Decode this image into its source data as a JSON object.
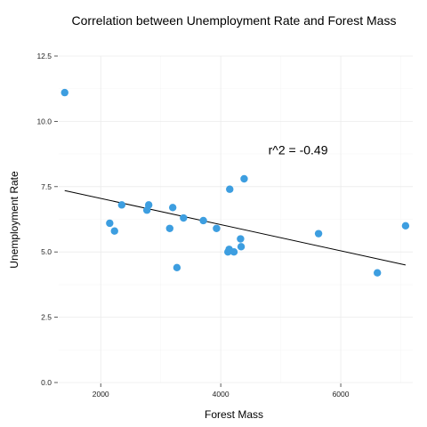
{
  "chart_data": {
    "type": "scatter",
    "title": "Correlation between Unemployment Rate and Forest Mass",
    "xlabel": "Forest Mass",
    "ylabel": "Unemployment Rate",
    "xlim": [
      1300,
      7200
    ],
    "ylim": [
      0,
      12.5
    ],
    "x_ticks": [
      2000,
      4000,
      6000
    ],
    "y_ticks": [
      0,
      2.5,
      5,
      7.5,
      10,
      12.5
    ],
    "x_tick_labels": [
      "2000",
      "4000",
      "6000"
    ],
    "y_tick_labels": [
      "0.0",
      "2.5",
      "5.0",
      "7.5",
      "10.0",
      "12.5"
    ],
    "grid": true,
    "point_color": "#3d9ee0",
    "points": [
      {
        "x": 1400,
        "y": 11.1
      },
      {
        "x": 2150,
        "y": 6.1
      },
      {
        "x": 2230,
        "y": 5.8
      },
      {
        "x": 2350,
        "y": 6.8
      },
      {
        "x": 2770,
        "y": 6.6
      },
      {
        "x": 2800,
        "y": 6.8
      },
      {
        "x": 3150,
        "y": 5.9
      },
      {
        "x": 3200,
        "y": 6.7
      },
      {
        "x": 3270,
        "y": 4.4
      },
      {
        "x": 3380,
        "y": 6.3
      },
      {
        "x": 3710,
        "y": 6.2
      },
      {
        "x": 3930,
        "y": 5.9
      },
      {
        "x": 4120,
        "y": 5.0
      },
      {
        "x": 4140,
        "y": 5.1
      },
      {
        "x": 4150,
        "y": 7.4
      },
      {
        "x": 4220,
        "y": 5.0
      },
      {
        "x": 4330,
        "y": 5.5
      },
      {
        "x": 4340,
        "y": 5.2
      },
      {
        "x": 4390,
        "y": 7.8
      },
      {
        "x": 5630,
        "y": 5.7
      },
      {
        "x": 6610,
        "y": 4.2
      },
      {
        "x": 7080,
        "y": 6.0
      }
    ],
    "fit_line": {
      "x": [
        1400,
        7080
      ],
      "y": [
        7.35,
        4.5
      ]
    },
    "annotation": {
      "text": "r^2 = -0.49",
      "x": 6000,
      "y": 8.9
    }
  }
}
